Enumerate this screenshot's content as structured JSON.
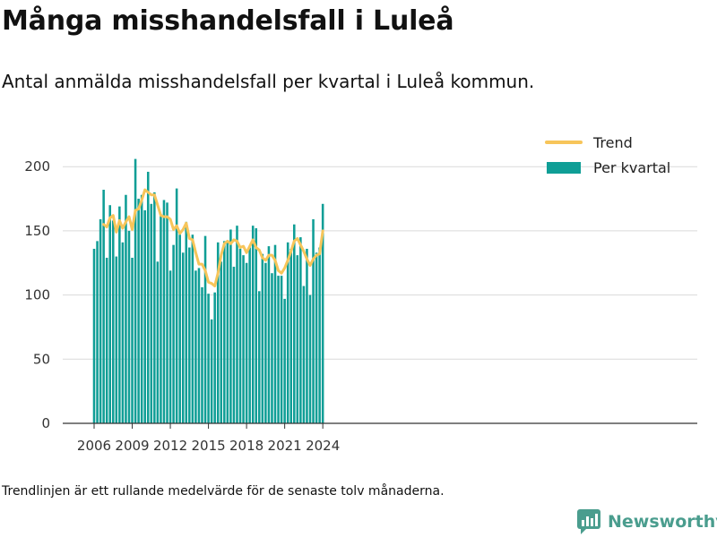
{
  "title": "Många misshandelsfall i Luleå",
  "subtitle": "Antal anmälda misshandelsfall per kvartal i Luleå kommun.",
  "footnote": "Trendlinjen är ett rullande medelvärde för de senaste tolv månaderna.",
  "brand": {
    "name": "Newsworthy",
    "color": "#4a9d8e"
  },
  "chart_data": {
    "type": "bar",
    "x_start": "2006 Q1",
    "x_ticks": [
      "2006",
      "2009",
      "2012",
      "2015",
      "2018",
      "2021",
      "2024"
    ],
    "y_ticks": [
      "0",
      "50",
      "100",
      "150",
      "200"
    ],
    "ylim": [
      0,
      215
    ],
    "grid": true,
    "legend_position": "top-right",
    "colors": {
      "bars": "#0f9e96",
      "trend": "#f7c55a",
      "grid": "#d9d9d9"
    },
    "series": [
      {
        "name": "Per kvartal",
        "type": "bar",
        "values": [
          136,
          142,
          159,
          182,
          129,
          170,
          158,
          130,
          169,
          141,
          178,
          150,
          129,
          206,
          175,
          178,
          166,
          196,
          171,
          180,
          126,
          163,
          174,
          172,
          119,
          139,
          183,
          147,
          133,
          157,
          137,
          147,
          119,
          121,
          106,
          146,
          101,
          81,
          102,
          141,
          126,
          142,
          142,
          151,
          122,
          154,
          136,
          131,
          125,
          137,
          154,
          152,
          103,
          132,
          125,
          138,
          117,
          139,
          115,
          115,
          97,
          141,
          136,
          155,
          131,
          145,
          107,
          136,
          100,
          159,
          133,
          137,
          171
        ]
      },
      {
        "name": "Trend",
        "type": "line",
        "start_index": 3,
        "values": [
          155,
          153,
          160,
          162,
          149,
          158,
          152,
          157,
          161,
          151,
          166,
          167,
          174,
          182,
          180,
          178,
          178,
          170,
          162,
          161,
          161,
          159,
          151,
          154,
          148,
          151,
          156,
          144,
          143,
          133,
          124,
          124,
          119,
          110,
          109,
          107,
          117,
          131,
          140,
          142,
          140,
          143,
          142,
          137,
          138,
          133,
          138,
          143,
          137,
          135,
          129,
          127,
          131,
          131,
          127,
          119,
          117,
          121,
          127,
          134,
          142,
          144,
          139,
          134,
          128,
          123,
          128,
          131,
          132,
          150
        ]
      }
    ]
  }
}
